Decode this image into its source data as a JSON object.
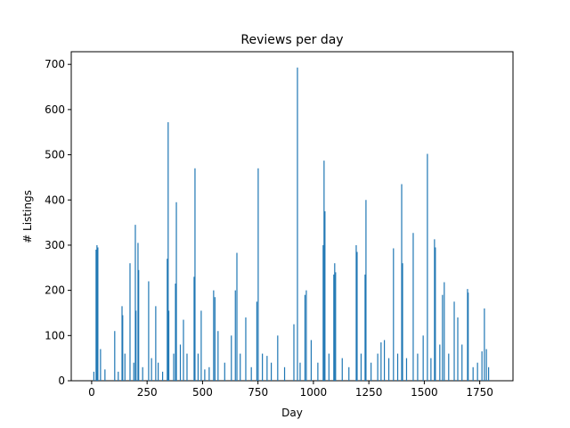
{
  "chart_data": {
    "type": "bar",
    "title": "Reviews per day",
    "x_label": "Day",
    "y_label": "# Listings",
    "color": "#1f77b4",
    "x": [
      10,
      20,
      24,
      28,
      40,
      60,
      104,
      120,
      137,
      140,
      150,
      173,
      190,
      197,
      200,
      209,
      212,
      230,
      257,
      270,
      289,
      300,
      320,
      341,
      345,
      348,
      370,
      378,
      382,
      400,
      414,
      430,
      462,
      466,
      480,
      494,
      510,
      530,
      550,
      556,
      570,
      600,
      630,
      648,
      655,
      670,
      695,
      720,
      745,
      751,
      770,
      791,
      810,
      839,
      870,
      912,
      928,
      940,
      962,
      968,
      990,
      1020,
      1044,
      1048,
      1052,
      1070,
      1092,
      1096,
      1100,
      1130,
      1160,
      1193,
      1197,
      1215,
      1233,
      1237,
      1260,
      1290,
      1305,
      1320,
      1340,
      1361,
      1380,
      1398,
      1402,
      1420,
      1450,
      1470,
      1495,
      1514,
      1530,
      1546,
      1550,
      1570,
      1582,
      1590,
      1610,
      1635,
      1651,
      1670,
      1695,
      1698,
      1720,
      1740,
      1760,
      1771,
      1780,
      1790
    ],
    "values": [
      20,
      290,
      300,
      295,
      70,
      25,
      110,
      20,
      165,
      145,
      60,
      260,
      40,
      345,
      155,
      305,
      245,
      30,
      220,
      50,
      165,
      40,
      20,
      270,
      572,
      155,
      60,
      215,
      395,
      80,
      135,
      60,
      230,
      470,
      60,
      155,
      25,
      30,
      200,
      185,
      110,
      40,
      100,
      200,
      283,
      60,
      140,
      30,
      175,
      470,
      60,
      55,
      40,
      100,
      30,
      125,
      693,
      40,
      190,
      200,
      90,
      40,
      300,
      487,
      375,
      60,
      235,
      260,
      240,
      50,
      30,
      300,
      285,
      60,
      235,
      400,
      40,
      60,
      85,
      90,
      50,
      293,
      60,
      435,
      260,
      50,
      327,
      60,
      100,
      502,
      50,
      313,
      295,
      80,
      190,
      218,
      60,
      175,
      140,
      80,
      203,
      195,
      30,
      40,
      65,
      160,
      70,
      30
    ],
    "xlim": [
      -92,
      1900
    ],
    "ylim": [
      0,
      728
    ],
    "xticks": [
      0,
      250,
      500,
      750,
      1000,
      1250,
      1500,
      1750
    ],
    "yticks": [
      0,
      100,
      200,
      300,
      400,
      500,
      600,
      700
    ]
  }
}
